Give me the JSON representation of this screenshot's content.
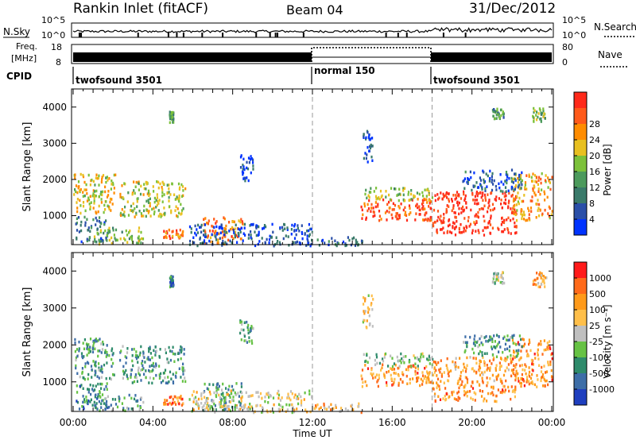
{
  "header": {
    "station": "Rankin Inlet (fitACF)",
    "beam": "Beam 04",
    "date": "31/Dec/2012"
  },
  "noise_panel": {
    "left_label": "N.Sky",
    "right_label": "N.Search",
    "left_ticks": [
      "10^5",
      "10^0"
    ],
    "right_ticks": [
      "10^5",
      "10^0"
    ]
  },
  "freq_panel": {
    "left_label_line1": "Freq.",
    "left_label_line2": "[MHz]",
    "left_ticks": [
      "18",
      "8"
    ],
    "right_label": "Nave",
    "right_ticks": [
      "80",
      "0"
    ]
  },
  "cpid": {
    "label": "CPID",
    "segments": [
      {
        "name": "twofsound 3501",
        "start_hour": 0
      },
      {
        "name": "normal 150",
        "start_hour": 12
      },
      {
        "name": "twofsound 3501",
        "start_hour": 18
      }
    ]
  },
  "x_axis": {
    "label": "Time UT",
    "ticks": [
      "00:00",
      "04:00",
      "08:00",
      "12:00",
      "16:00",
      "20:00",
      "00:00"
    ]
  },
  "colors": {
    "power_scale": [
      "#0033ff",
      "#2a4fa8",
      "#3a7a6a",
      "#4c9a5c",
      "#7cc13a",
      "#e8c020",
      "#ff8c00",
      "#ff5a1a",
      "#ff2a1a"
    ],
    "velocity_scale": [
      "#1f3fbf",
      "#3d6ea8",
      "#2e8b6b",
      "#66c244",
      "#bfbfbf",
      "#ffbf4a",
      "#ff9a1a",
      "#ff6a1a",
      "#ff1a1a"
    ]
  },
  "chart_data": [
    {
      "type": "heatmap",
      "title": "Power",
      "ylabel": "Slant Range [km]",
      "xlabel": "",
      "xlim": [
        0,
        24
      ],
      "ylim": [
        200,
        4500
      ],
      "y_ticks": [
        1000,
        2000,
        3000,
        4000
      ],
      "colorbar": {
        "label": "Power [dB]",
        "range": [
          0,
          32
        ],
        "ticks": [
          "4",
          "8",
          "12",
          "16",
          "20",
          "24",
          "28"
        ]
      },
      "blobs": [
        {
          "t0": 0.0,
          "t1": 2.1,
          "r0": 1100,
          "r1": 2200,
          "level": 0.6
        },
        {
          "t0": 2.3,
          "t1": 5.6,
          "r0": 1000,
          "r1": 2000,
          "level": 0.55
        },
        {
          "t0": 0.1,
          "t1": 1.7,
          "r0": 300,
          "r1": 1000,
          "level": 0.25
        },
        {
          "t0": 1.0,
          "t1": 3.5,
          "r0": 250,
          "r1": 700,
          "level": 0.5
        },
        {
          "t0": 4.5,
          "t1": 5.5,
          "r0": 400,
          "r1": 650,
          "level": 0.8
        },
        {
          "t0": 6.5,
          "t1": 8.5,
          "r0": 250,
          "r1": 1000,
          "level": 0.75
        },
        {
          "t0": 5.8,
          "t1": 12.0,
          "r0": 200,
          "r1": 800,
          "level": 0.15
        },
        {
          "t0": 12.0,
          "t1": 14.5,
          "r0": 200,
          "r1": 450,
          "level": 0.2
        },
        {
          "t0": 14.4,
          "t1": 18.0,
          "r0": 900,
          "r1": 1500,
          "level": 0.85
        },
        {
          "t0": 14.5,
          "t1": 18.0,
          "r0": 1450,
          "r1": 1800,
          "level": 0.5
        },
        {
          "t0": 18.0,
          "t1": 22.2,
          "r0": 500,
          "r1": 1700,
          "level": 0.95
        },
        {
          "t0": 22.0,
          "t1": 24.0,
          "r0": 900,
          "r1": 2200,
          "level": 0.7
        },
        {
          "t0": 19.5,
          "t1": 22.5,
          "r0": 1700,
          "r1": 2300,
          "level": 0.2
        },
        {
          "t0": 23.0,
          "t1": 23.7,
          "r0": 3600,
          "r1": 4000,
          "level": 0.45
        },
        {
          "t0": 21.0,
          "t1": 21.6,
          "r0": 3700,
          "r1": 4000,
          "level": 0.35
        },
        {
          "t0": 14.5,
          "t1": 15.0,
          "r0": 2500,
          "r1": 3400,
          "level": 0.15
        },
        {
          "t0": 8.3,
          "t1": 9.0,
          "r0": 2000,
          "r1": 2700,
          "level": 0.15
        },
        {
          "t0": 4.8,
          "t1": 5.0,
          "r0": 3600,
          "r1": 3900,
          "level": 0.4
        }
      ]
    },
    {
      "type": "heatmap",
      "title": "Velocity",
      "ylabel": "Slant Range [km]",
      "xlabel": "Time UT",
      "xlim": [
        0,
        24
      ],
      "ylim": [
        200,
        4500
      ],
      "y_ticks": [
        1000,
        2000,
        3000,
        4000
      ],
      "colorbar": {
        "label": "Velocity [m s⁻¹]",
        "ticks": [
          "1000",
          "500",
          "100",
          "25",
          "-25",
          "-100",
          "-500",
          "-1000"
        ]
      },
      "blobs": [
        {
          "t0": 0.0,
          "t1": 2.1,
          "r0": 1100,
          "r1": 2200,
          "level": 0.3
        },
        {
          "t0": 2.3,
          "t1": 5.6,
          "r0": 1000,
          "r1": 2000,
          "level": 0.3
        },
        {
          "t0": 0.1,
          "t1": 1.7,
          "r0": 300,
          "r1": 1000,
          "level": 0.25
        },
        {
          "t0": 1.0,
          "t1": 3.5,
          "r0": 250,
          "r1": 700,
          "level": 0.3
        },
        {
          "t0": 4.5,
          "t1": 5.5,
          "r0": 400,
          "r1": 650,
          "level": 0.75
        },
        {
          "t0": 6.5,
          "t1": 8.5,
          "r0": 250,
          "r1": 1000,
          "level": 0.3
        },
        {
          "t0": 5.8,
          "t1": 12.0,
          "r0": 200,
          "r1": 800,
          "level": 0.55
        },
        {
          "t0": 12.0,
          "t1": 14.5,
          "r0": 200,
          "r1": 450,
          "level": 0.65
        },
        {
          "t0": 14.4,
          "t1": 18.0,
          "r0": 900,
          "r1": 1500,
          "level": 0.75
        },
        {
          "t0": 14.5,
          "t1": 18.0,
          "r0": 1450,
          "r1": 1800,
          "level": 0.4
        },
        {
          "t0": 18.0,
          "t1": 22.2,
          "r0": 500,
          "r1": 1700,
          "level": 0.72
        },
        {
          "t0": 22.0,
          "t1": 24.0,
          "r0": 900,
          "r1": 2200,
          "level": 0.75
        },
        {
          "t0": 19.5,
          "t1": 22.5,
          "r0": 1700,
          "r1": 2300,
          "level": 0.3
        },
        {
          "t0": 23.0,
          "t1": 23.7,
          "r0": 3600,
          "r1": 4000,
          "level": 0.7
        },
        {
          "t0": 21.0,
          "t1": 21.6,
          "r0": 3700,
          "r1": 4000,
          "level": 0.45
        },
        {
          "t0": 14.5,
          "t1": 15.0,
          "r0": 2500,
          "r1": 3400,
          "level": 0.6
        },
        {
          "t0": 8.3,
          "t1": 9.0,
          "r0": 2000,
          "r1": 2700,
          "level": 0.35
        },
        {
          "t0": 4.8,
          "t1": 5.0,
          "r0": 3600,
          "r1": 3900,
          "level": 0.2
        }
      ]
    }
  ]
}
